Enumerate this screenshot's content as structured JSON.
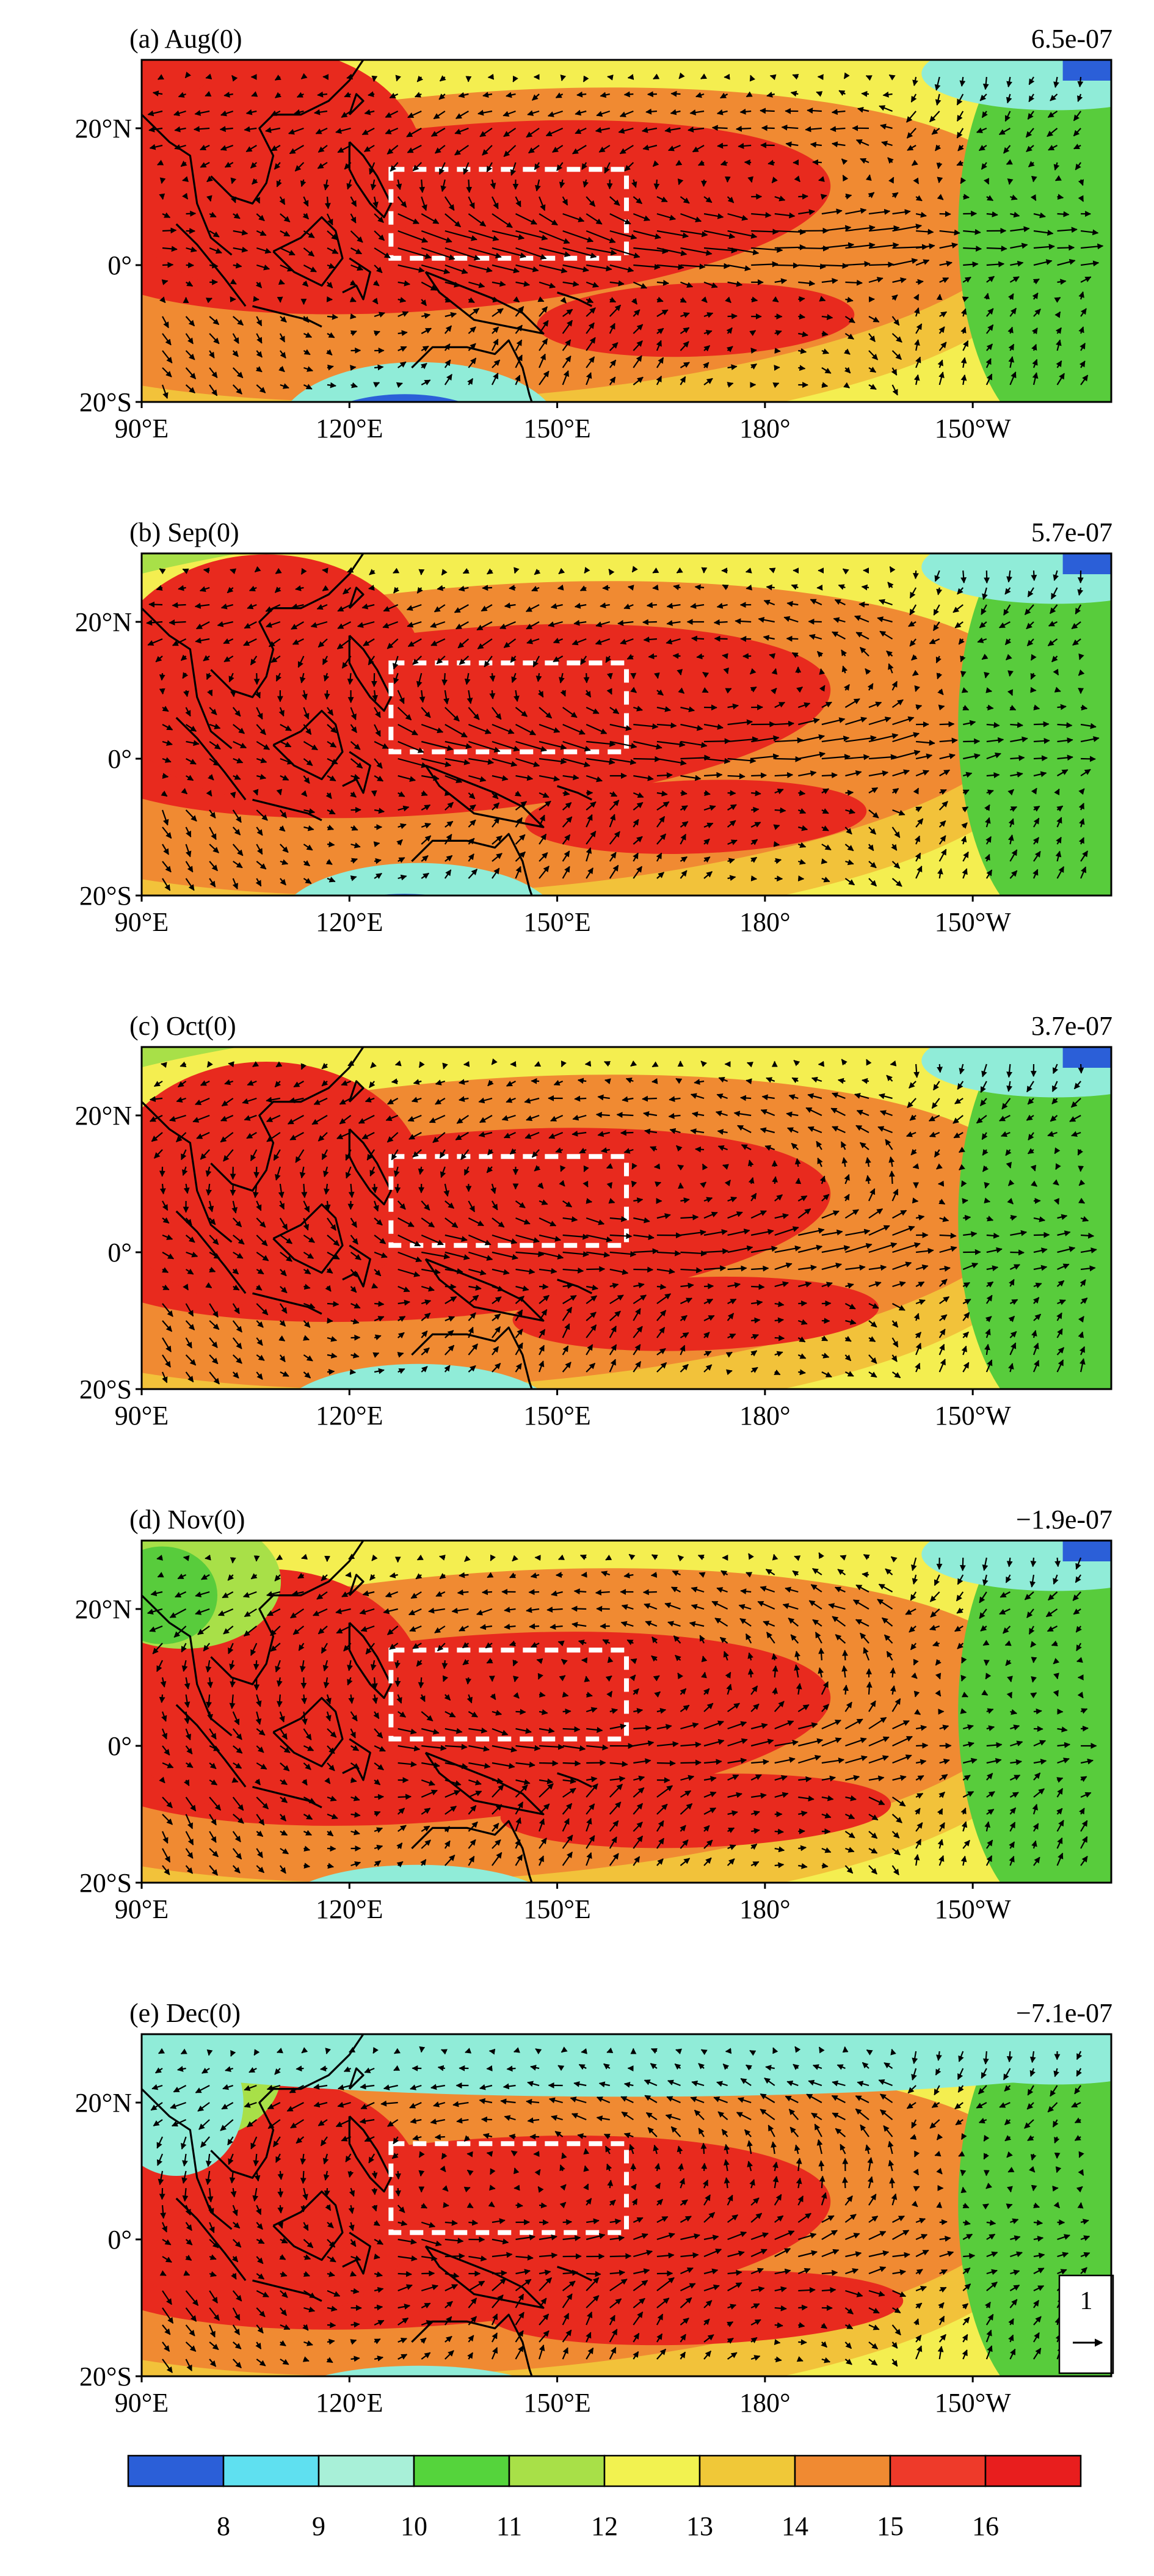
{
  "panels": [
    {
      "title": "(a) Aug(0)",
      "value": "6.5e-07"
    },
    {
      "title": "(b) Sep(0)",
      "value": "5.7e-07"
    },
    {
      "title": "(c) Oct(0)",
      "value": "3.7e-07"
    },
    {
      "title": "(d) Nov(0)",
      "value": "−1.9e-07"
    },
    {
      "title": "(e) Dec(0)",
      "value": "−7.1e-07"
    }
  ],
  "axes": {
    "lat_ticks": [
      "20°N",
      "0°",
      "20°S"
    ],
    "lon_ticks": [
      "90°E",
      "120°E",
      "150°E",
      "180°",
      "150°W"
    ]
  },
  "reference_vector": {
    "label": "1"
  },
  "colorbar": {
    "labels": [
      "8",
      "9",
      "10",
      "11",
      "12",
      "13",
      "14",
      "15",
      "16"
    ],
    "colors": [
      "#2b5fd8",
      "#5fe0f0",
      "#a8f0d8",
      "#55d43c",
      "#a8e048",
      "#f2f250",
      "#f0c838",
      "#f08a32",
      "#ee3a2a",
      "#e81e1e"
    ]
  },
  "field_colors": {
    "red": "#e82a1e",
    "orange": "#f08a32",
    "amber": "#f2c23a",
    "yellow": "#f4ee50",
    "lime": "#a8e048",
    "green": "#58cc3c",
    "cyan": "#90ecd8",
    "blue": "#2b5fd8"
  }
}
